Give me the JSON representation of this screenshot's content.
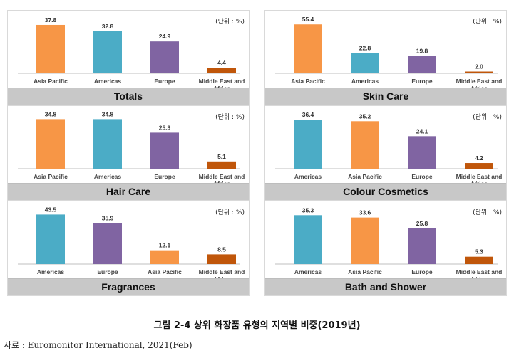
{
  "unit_label": "(단위 : %)",
  "colors": {
    "orange": "#f79646",
    "teal": "#4bacc6",
    "purple": "#8064a2",
    "brown": "#c0560a"
  },
  "chart_data": [
    {
      "type": "bar",
      "title": "Totals",
      "categories": [
        [
          "Asia Pacific"
        ],
        [
          "Americas"
        ],
        [
          "Europe"
        ],
        [
          "Middle East and",
          "Africa"
        ]
      ],
      "values": [
        37.8,
        32.8,
        24.9,
        4.4
      ],
      "bar_colors": [
        "orange",
        "teal",
        "purple",
        "brown"
      ],
      "ylim": [
        0,
        40
      ]
    },
    {
      "type": "bar",
      "title": "Skin Care",
      "categories": [
        [
          "Asia Pacific"
        ],
        [
          "Americas"
        ],
        [
          "Europe"
        ],
        [
          "Middle East and",
          "Africa"
        ]
      ],
      "values": [
        55.4,
        22.8,
        19.8,
        2.0
      ],
      "bar_colors": [
        "orange",
        "teal",
        "purple",
        "brown"
      ],
      "ylim": [
        0,
        58
      ]
    },
    {
      "type": "bar",
      "title": "Hair Care",
      "categories": [
        [
          "Asia Pacific"
        ],
        [
          "Americas"
        ],
        [
          "Europe"
        ],
        [
          "Middle East and",
          "Africa"
        ]
      ],
      "values": [
        34.8,
        34.8,
        25.3,
        5.1
      ],
      "bar_colors": [
        "orange",
        "teal",
        "purple",
        "brown"
      ],
      "ylim": [
        0,
        36
      ]
    },
    {
      "type": "bar",
      "title": "Colour Cosmetics",
      "categories": [
        [
          "Americas"
        ],
        [
          "Asia Pacific"
        ],
        [
          "Europe"
        ],
        [
          "Middle East and",
          "Africa"
        ]
      ],
      "values": [
        36.4,
        35.2,
        24.1,
        4.2
      ],
      "bar_colors": [
        "teal",
        "orange",
        "purple",
        "brown"
      ],
      "ylim": [
        0,
        38
      ]
    },
    {
      "type": "bar",
      "title": "Fragrances",
      "categories": [
        [
          "Americas"
        ],
        [
          "Europe"
        ],
        [
          "Asia Pacific"
        ],
        [
          "Middle East and",
          "Africa"
        ]
      ],
      "values": [
        43.5,
        35.9,
        12.1,
        8.5
      ],
      "bar_colors": [
        "teal",
        "purple",
        "orange",
        "brown"
      ],
      "ylim": [
        0,
        45
      ]
    },
    {
      "type": "bar",
      "title": "Bath and Shower",
      "categories": [
        [
          "Americas"
        ],
        [
          "Asia Pacific"
        ],
        [
          "Europe"
        ],
        [
          "Middle East and",
          "Africa"
        ]
      ],
      "values": [
        35.3,
        33.6,
        25.8,
        5.3
      ],
      "bar_colors": [
        "teal",
        "orange",
        "purple",
        "brown"
      ],
      "ylim": [
        0,
        37
      ]
    }
  ],
  "caption": "그림 2-4  상위 화장품 유형의 지역별 비중(2019년)",
  "source": "자료 : Euromonitor International, 2021(Feb)"
}
